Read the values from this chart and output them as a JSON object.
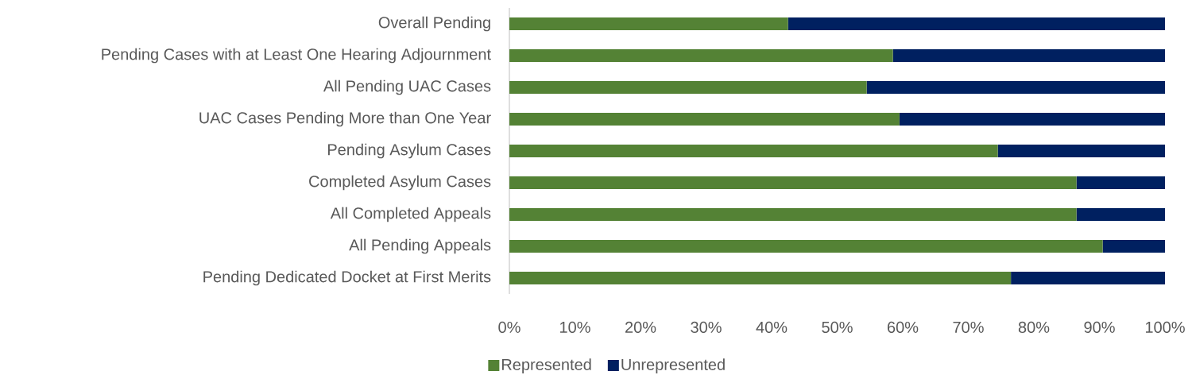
{
  "chart_data": {
    "type": "bar",
    "orientation": "horizontal",
    "stacked": true,
    "categories": [
      "Overall Pending",
      "Pending Cases with at Least One Hearing Adjournment",
      "All Pending UAC Cases",
      "UAC Cases Pending More than One Year",
      "Pending Asylum Cases",
      "Completed Asylum Cases",
      "All Completed Appeals",
      "All Pending Appeals",
      "Pending Dedicated Docket at First Merits"
    ],
    "series": [
      {
        "name": "Represented",
        "color": "#548235",
        "values": [
          42.5,
          58.5,
          54.5,
          59.5,
          74.5,
          86.5,
          86.5,
          90.5,
          76.5
        ]
      },
      {
        "name": "Unrepresented",
        "color": "#002060",
        "values": [
          57.5,
          41.5,
          45.5,
          40.5,
          25.5,
          13.5,
          13.5,
          9.5,
          23.5
        ]
      }
    ],
    "xlim": [
      0,
      100
    ],
    "xticks": [
      {
        "value": 0,
        "label": "0%"
      },
      {
        "value": 10,
        "label": "10%"
      },
      {
        "value": 20,
        "label": "20%"
      },
      {
        "value": 30,
        "label": "30%"
      },
      {
        "value": 40,
        "label": "40%"
      },
      {
        "value": 50,
        "label": "50%"
      },
      {
        "value": 60,
        "label": "60%"
      },
      {
        "value": 70,
        "label": "70%"
      },
      {
        "value": 80,
        "label": "80%"
      },
      {
        "value": 90,
        "label": "90%"
      },
      {
        "value": 100,
        "label": "100%"
      }
    ],
    "grid": false,
    "legend": "bottom"
  }
}
